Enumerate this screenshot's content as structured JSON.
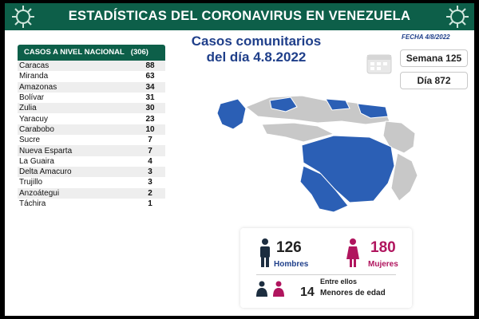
{
  "banner": {
    "title": "ESTADÍSTICAS DEL CORONAVIRUS EN VENEZUELA"
  },
  "headline": {
    "line1": "Casos comunitarios",
    "line2": "del día 4.8.2022"
  },
  "date": "FECHA 4/8/2022",
  "week": "Semana 125",
  "day": "Día 872",
  "table": {
    "header_label": "CASOS A NIVEL NACIONAL",
    "header_total": "(306)",
    "rows": [
      {
        "state": "Caracas",
        "cases": "88"
      },
      {
        "state": "Miranda",
        "cases": "63"
      },
      {
        "state": "Amazonas",
        "cases": "34"
      },
      {
        "state": "Bolívar",
        "cases": "31"
      },
      {
        "state": "Zulia",
        "cases": "30"
      },
      {
        "state": "Yaracuy",
        "cases": "23"
      },
      {
        "state": "Carabobo",
        "cases": "10"
      },
      {
        "state": "Sucre",
        "cases": "7"
      },
      {
        "state": "Nueva Esparta",
        "cases": "7"
      },
      {
        "state": "La Guaira",
        "cases": "4"
      },
      {
        "state": "Delta Amacuro",
        "cases": "3"
      },
      {
        "state": "Trujillo",
        "cases": "3"
      },
      {
        "state": "Anzoátegui",
        "cases": "2"
      },
      {
        "state": "Táchira",
        "cases": "1"
      }
    ]
  },
  "stats": {
    "men_count": "126",
    "men_label": "Hombres",
    "women_count": "180",
    "women_label": "Mujeres",
    "minors_prefix": "Entre ellos",
    "minors_count": "14",
    "minors_label": "Menores de edad"
  },
  "colors": {
    "banner": "#0d5f49",
    "map_cases": "#2b5fb5",
    "map_none": "#c8c8c8",
    "women": "#b0155e",
    "headline": "#1f3f8a"
  },
  "icons": [
    "virus-icon",
    "calendar-icon",
    "man-icon",
    "woman-icon",
    "children-icon"
  ]
}
